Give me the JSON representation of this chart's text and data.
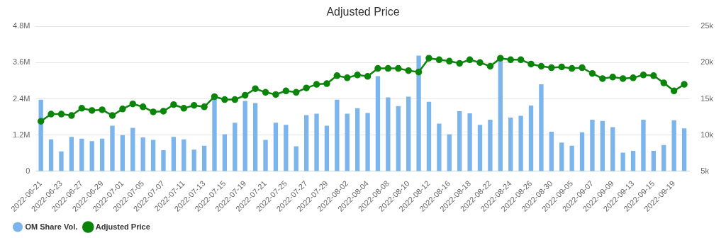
{
  "chart_data": {
    "type": "bar",
    "title": "Adjusted Price",
    "categories": [
      "2022-06-21",
      null,
      "2022-06-23",
      null,
      "2022-06-27",
      null,
      "2022-06-29",
      null,
      "2022-07-01",
      null,
      "2022-07-05",
      null,
      "2022-07-07",
      null,
      "2022-07-11",
      null,
      "2022-07-13",
      null,
      "2022-07-15",
      null,
      "2022-07-19",
      null,
      "2022-07-21",
      null,
      "2022-07-25",
      null,
      "2022-07-27",
      null,
      "2022-07-29",
      null,
      "2022-08-02",
      null,
      "2022-08-04",
      null,
      "2022-08-08",
      null,
      "2022-08-10",
      null,
      "2022-08-12",
      null,
      "2022-08-16",
      null,
      "2022-08-18",
      null,
      "2022-08-22",
      null,
      "2022-08-24",
      null,
      "2022-08-26",
      null,
      "2022-08-30",
      null,
      "2022-09-05",
      null,
      "2022-09-07",
      null,
      "2022-09-09",
      null,
      "2022-09-13",
      null,
      "2022-09-15",
      null,
      "2022-09-19",
      null
    ],
    "series": [
      {
        "name": "OM Share Vol.",
        "color": "#7cb5ec",
        "values": [
          2370000,
          1060000,
          660000,
          1140000,
          1080000,
          1000000,
          1080000,
          1510000,
          1200000,
          1440000,
          1120000,
          1040000,
          700000,
          1140000,
          1060000,
          720000,
          850000,
          2450000,
          1230000,
          1610000,
          2330000,
          2260000,
          1040000,
          1610000,
          1540000,
          830000,
          1860000,
          1910000,
          1510000,
          2370000,
          1910000,
          2090000,
          1930000,
          3150000,
          2450000,
          2160000,
          2470000,
          3830000,
          2300000,
          1580000,
          1230000,
          1990000,
          1920000,
          1540000,
          1710000,
          3710000,
          1780000,
          1840000,
          2180000,
          2880000,
          1310000,
          950000,
          850000,
          1290000,
          1710000,
          1670000,
          1460000,
          620000,
          680000,
          1710000,
          680000,
          870000,
          1690000,
          1420000
        ]
      },
      {
        "name": "Adjusted Price",
        "type": "line",
        "axis": "y2",
        "color": "#0a850a",
        "values": [
          11900,
          12900,
          12900,
          12700,
          13700,
          13400,
          13500,
          12700,
          13600,
          14300,
          13900,
          13200,
          13300,
          14200,
          13700,
          14100,
          13900,
          15300,
          14900,
          14900,
          15500,
          16400,
          15900,
          15600,
          16100,
          15900,
          16500,
          17000,
          17100,
          18200,
          17900,
          18300,
          18100,
          19200,
          19200,
          19200,
          18900,
          18700,
          20600,
          20400,
          20200,
          19900,
          20400,
          20000,
          19500,
          20600,
          20400,
          20400,
          19800,
          19500,
          19300,
          19400,
          19200,
          19300,
          18500,
          17800,
          18000,
          17800,
          17900,
          18300,
          18200,
          17200,
          16100,
          17000
        ]
      }
    ],
    "ylim": [
      0,
      4800000
    ],
    "yticks": [
      0,
      {
        "value": 1200000,
        "label": "1.2M"
      },
      {
        "value": 2400000,
        "label": "2.4M"
      },
      {
        "value": 3600000,
        "label": "3.6M"
      },
      {
        "value": 4800000,
        "label": "4.8M"
      }
    ],
    "y2lim": [
      5000,
      25000
    ],
    "y2ticks": [
      {
        "value": 5000,
        "label": "5k"
      },
      {
        "value": 10000,
        "label": "10k"
      },
      {
        "value": 15000,
        "label": "15k"
      },
      {
        "value": 20000,
        "label": "20k"
      },
      {
        "value": 25000,
        "label": "25k"
      }
    ],
    "grid": "y",
    "legend": "bottom left",
    "marker": "circle",
    "line_style": "solid"
  }
}
